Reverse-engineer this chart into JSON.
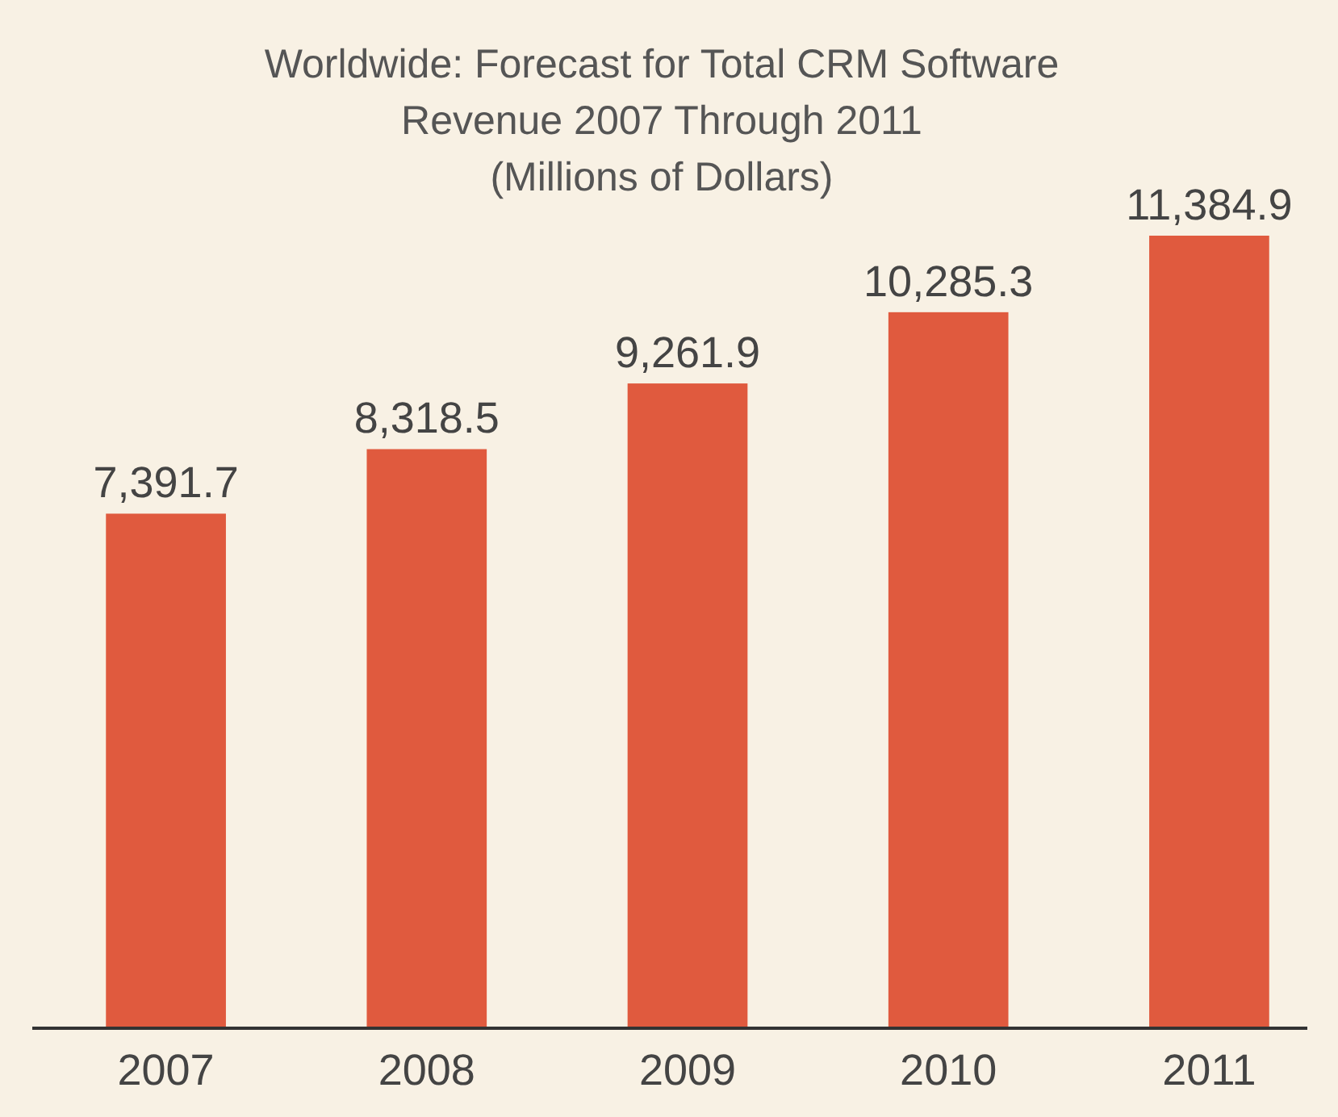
{
  "chart_data": {
    "type": "bar",
    "title": "Worldwide: Forecast for Total CRM Software\nRevenue 2007 Through 2011\n(Millions of Dollars)",
    "categories": [
      "2007",
      "2008",
      "2009",
      "2010",
      "2011"
    ],
    "values": [
      7391.7,
      8318.5,
      9261.9,
      10285.3,
      11384.9
    ],
    "value_labels": [
      "7,391.7",
      "8,318.5",
      "9,261.9",
      "10,285.3",
      "11,384.9"
    ],
    "color": "#e05a3e",
    "tick_labels": "x"
  }
}
